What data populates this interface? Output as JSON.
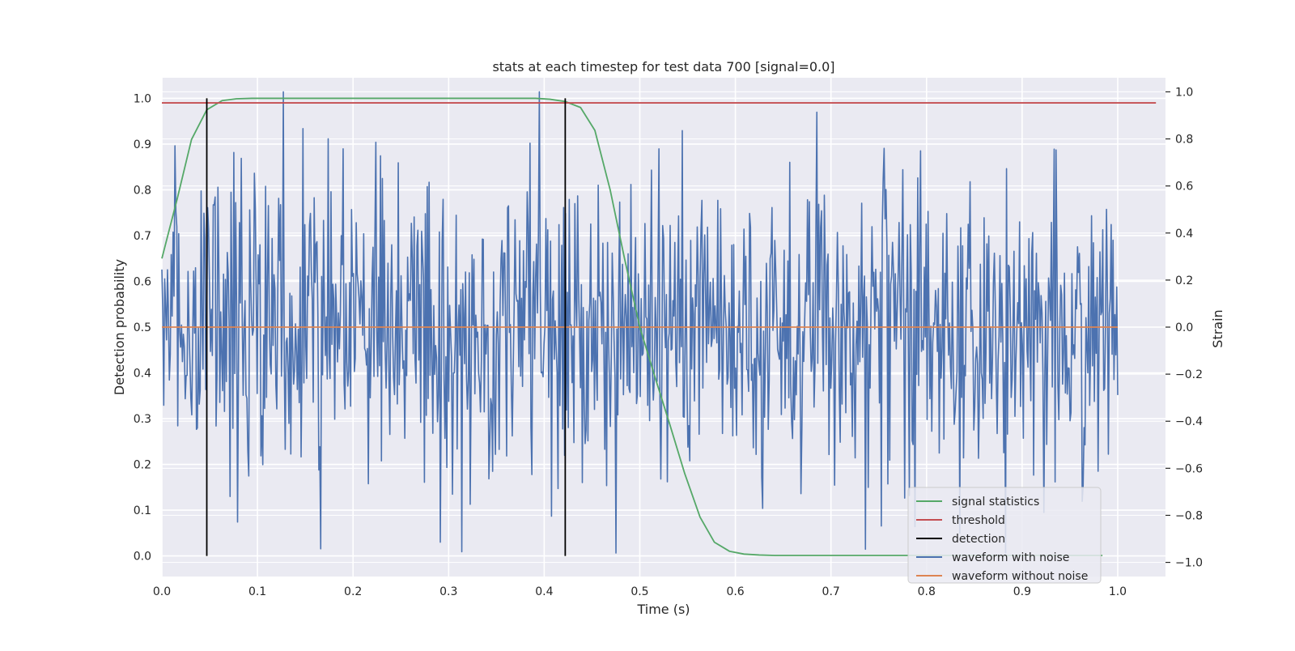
{
  "chart_data": {
    "type": "line",
    "title": "stats at each timestep for test data 700 [signal=0.0]",
    "xlabel": "Time (s)",
    "ylabel_left": "Detection probability",
    "ylabel_right": "Strain",
    "xlim": [
      0.0,
      1.05
    ],
    "ylim_left": [
      -0.045,
      1.045
    ],
    "ylim_right": [
      -1.06,
      1.06
    ],
    "xticks": [
      "0.0",
      "0.1",
      "0.2",
      "0.3",
      "0.4",
      "0.5",
      "0.6",
      "0.7",
      "0.8",
      "0.9",
      "1.0"
    ],
    "yticks_left": [
      "0.0",
      "0.1",
      "0.2",
      "0.3",
      "0.4",
      "0.5",
      "0.6",
      "0.7",
      "0.8",
      "0.9",
      "1.0"
    ],
    "yticks_right": [
      "−1.0",
      "−0.8",
      "−0.6",
      "−0.4",
      "−0.2",
      "0.0",
      "0.2",
      "0.4",
      "0.6",
      "0.8",
      "1.0"
    ],
    "grid": true,
    "legend_position": "lower-right",
    "series": [
      {
        "name": "signal statistics",
        "axis": "left",
        "color": "#55a868",
        "x": [
          0.0,
          0.016,
          0.031,
          0.047,
          0.063,
          0.078,
          0.094,
          0.2,
          0.3,
          0.391,
          0.406,
          0.422,
          0.438,
          0.453,
          0.469,
          0.484,
          0.5,
          0.516,
          0.531,
          0.547,
          0.563,
          0.578,
          0.594,
          0.609,
          0.625,
          0.641,
          0.7,
          0.8,
          0.9,
          0.984
        ],
        "y": [
          0.65,
          0.78,
          0.91,
          0.975,
          0.995,
          0.999,
          1.0,
          1.0,
          1.0,
          1.0,
          0.998,
          0.993,
          0.98,
          0.93,
          0.8,
          0.65,
          0.5,
          0.39,
          0.29,
          0.18,
          0.085,
          0.03,
          0.01,
          0.004,
          0.002,
          0.001,
          0.001,
          0.001,
          0.001,
          0.001
        ]
      },
      {
        "name": "threshold",
        "axis": "left",
        "color": "#c44e52",
        "x": [
          0.0,
          1.04
        ],
        "y": [
          0.99,
          0.99
        ]
      },
      {
        "name": "detection",
        "axis": "left",
        "color": "#000000",
        "x": [
          0.047,
          0.422
        ],
        "y_range": [
          0.0,
          1.0
        ]
      },
      {
        "name": "waveform with noise",
        "axis": "right",
        "color": "#4c72b0",
        "x_range": [
          0.0,
          1.0
        ],
        "points": 1024,
        "y_min": -0.96,
        "y_max": 1.0
      },
      {
        "name": "waveform without noise",
        "axis": "right",
        "color": "#dd8452",
        "x": [
          0.0,
          1.0
        ],
        "y": [
          0.0,
          0.0
        ]
      }
    ]
  }
}
